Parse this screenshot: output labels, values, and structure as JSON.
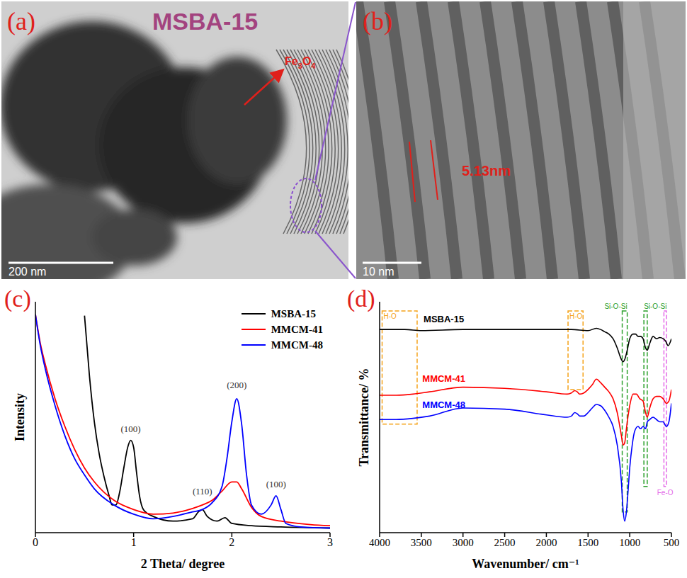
{
  "panels": [
    {
      "letter": "(a)",
      "title": "MSBA-15",
      "annotation": "Fe3O4",
      "scale_bar": "200 nm"
    },
    {
      "letter": "(b)",
      "measure": "5.13nm",
      "scale_bar": "10 nm"
    }
  ],
  "chart_data": [
    {
      "letter": "(c)",
      "type": "line",
      "x_label": "2 Theta/ degree",
      "y_label": "Intensity",
      "xlim": [
        0,
        3
      ],
      "xticks": [
        0,
        1,
        2,
        3
      ],
      "ylim": [
        0,
        100
      ],
      "tick_labels": "x",
      "legend": "upper right",
      "series": [
        {
          "name": "MSBA-15",
          "color": "#000000",
          "x": [
            0.5,
            0.55,
            0.6,
            0.65,
            0.7,
            0.75,
            0.78,
            0.82,
            0.86,
            0.9,
            0.94,
            0.97,
            1.0,
            1.03,
            1.06,
            1.1,
            1.2,
            1.4,
            1.6,
            1.66,
            1.7,
            1.75,
            1.85,
            1.93,
            2.0,
            2.2,
            2.5,
            3.0
          ],
          "values": [
            94,
            68,
            48,
            34,
            24,
            16,
            12,
            12,
            18,
            28,
            37,
            40,
            37,
            26,
            16,
            10,
            7,
            5,
            6,
            9,
            10,
            7,
            5,
            6.5,
            4,
            3,
            2.5,
            2
          ]
        },
        {
          "name": "MMCM-41",
          "color": "#ff0000",
          "x": [
            0,
            0.05,
            0.1,
            0.2,
            0.3,
            0.4,
            0.5,
            0.6,
            0.8,
            1.0,
            1.2,
            1.4,
            1.6,
            1.7,
            1.8,
            1.9,
            2.0,
            2.05,
            2.1,
            2.2,
            2.3,
            2.5,
            2.8,
            3.0
          ],
          "values": [
            94.5,
            82,
            73,
            58,
            46,
            36,
            28,
            22,
            14,
            10,
            8,
            8.5,
            10.5,
            12,
            14,
            18,
            22,
            22,
            19,
            11,
            7,
            5,
            3.5,
            3
          ]
        },
        {
          "name": "MMCM-48",
          "color": "#0000ff",
          "x": [
            0,
            0.05,
            0.1,
            0.2,
            0.3,
            0.4,
            0.5,
            0.6,
            0.8,
            1.0,
            1.2,
            1.4,
            1.6,
            1.7,
            1.8,
            1.9,
            1.95,
            2.0,
            2.05,
            2.1,
            2.15,
            2.2,
            2.3,
            2.4,
            2.45,
            2.5,
            2.55,
            2.7,
            3.0
          ],
          "values": [
            94.5,
            81,
            71,
            55,
            42,
            32,
            25,
            19,
            12,
            8,
            6,
            7,
            9,
            10,
            13,
            20,
            32,
            48,
            58,
            47,
            25,
            12,
            8,
            12,
            16,
            10,
            4,
            2.5,
            2
          ]
        }
      ],
      "annotations": [
        {
          "text": "(100)",
          "x": 0.97,
          "y": 45
        },
        {
          "text": "(110)",
          "x": 1.7,
          "y": 18
        },
        {
          "text": "(200)",
          "x": 2.05,
          "y": 64
        },
        {
          "text": "(100)",
          "x": 2.45,
          "y": 21
        }
      ]
    },
    {
      "letter": "(d)",
      "type": "line",
      "x_label": "Wavenumber/ cm⁻¹",
      "y_label": "Transmittance/ %",
      "xlim": [
        4000,
        500
      ],
      "xticks": [
        4000,
        3500,
        3000,
        2500,
        2000,
        1500,
        1000,
        500
      ],
      "ylim": [
        0,
        100
      ],
      "tick_labels": "x",
      "series": [
        {
          "name": "MSBA-15",
          "color": "#000000",
          "x": [
            4000,
            3700,
            3500,
            3000,
            2500,
            2000,
            1700,
            1500,
            1400,
            1350,
            1300,
            1250,
            1200,
            1150,
            1100,
            1080,
            1060,
            1030,
            1000,
            960,
            930,
            900,
            870,
            840,
            810,
            790,
            760,
            720,
            680,
            640,
            600,
            570,
            540,
            500
          ],
          "values": [
            88,
            88,
            87.5,
            88,
            88,
            88,
            88,
            87.5,
            88.5,
            88,
            87,
            86,
            84,
            80,
            75,
            74,
            75,
            79,
            84,
            86,
            86,
            85,
            85,
            84,
            80,
            79,
            82,
            85,
            84,
            84.5,
            84,
            83,
            81,
            84
          ]
        },
        {
          "name": "MMCM-41",
          "color": "#ff0000",
          "x": [
            4000,
            3800,
            3600,
            3400,
            3000,
            2500,
            2000,
            1750,
            1700,
            1660,
            1630,
            1600,
            1550,
            1500,
            1450,
            1400,
            1350,
            1300,
            1250,
            1200,
            1150,
            1100,
            1080,
            1060,
            1040,
            1000,
            960,
            920,
            880,
            840,
            810,
            790,
            760,
            720,
            680,
            640,
            600,
            560,
            530,
            500
          ],
          "values": [
            59.5,
            59.5,
            60,
            61,
            63,
            62.5,
            61,
            60,
            60.5,
            61.5,
            61,
            60,
            60.5,
            62,
            64,
            66.5,
            65,
            63,
            61,
            58,
            52,
            42,
            38,
            39,
            45,
            55,
            60,
            60,
            58,
            57,
            52,
            50,
            54,
            58,
            59,
            59,
            58,
            56,
            57,
            62
          ]
        },
        {
          "name": "MMCM-48",
          "color": "#0000ff",
          "x": [
            4000,
            3800,
            3600,
            3400,
            3000,
            2500,
            2000,
            1750,
            1700,
            1660,
            1630,
            1600,
            1550,
            1500,
            1450,
            1400,
            1350,
            1300,
            1250,
            1200,
            1150,
            1100,
            1080,
            1060,
            1040,
            1020,
            1000,
            970,
            940,
            900,
            870,
            840,
            810,
            790,
            760,
            720,
            680,
            640,
            600,
            560,
            530,
            500
          ],
          "values": [
            49,
            49,
            49.5,
            50.5,
            54,
            53.5,
            51,
            50,
            50.5,
            52,
            51.5,
            50.5,
            50.5,
            52,
            54,
            55.5,
            55,
            53,
            50,
            46,
            38,
            22,
            10,
            5,
            9,
            18,
            28,
            38,
            44,
            46,
            45,
            46,
            45,
            48,
            49,
            50,
            49,
            48,
            48,
            46,
            48,
            56
          ]
        }
      ],
      "bands": [
        {
          "label": "H-O",
          "x": [
            3970,
            3550
          ],
          "y": [
            47,
            96
          ],
          "color": "#f5a31a"
        },
        {
          "label": "H-O",
          "x": [
            1740,
            1560
          ],
          "y": [
            62,
            96
          ],
          "color": "#f5a31a"
        },
        {
          "label": "Si-O-Si",
          "x": [
            1090,
            1030
          ],
          "y": [
            9,
            96
          ],
          "color": "#2ca02c"
        },
        {
          "label": "Si-O-Si",
          "x": [
            830,
            790
          ],
          "y": [
            20,
            96
          ],
          "color": "#2ca02c"
        },
        {
          "label": "Fe-O",
          "x": [
            590,
            560
          ],
          "y": [
            20,
            96
          ],
          "color": "#e46ae8"
        }
      ]
    }
  ]
}
